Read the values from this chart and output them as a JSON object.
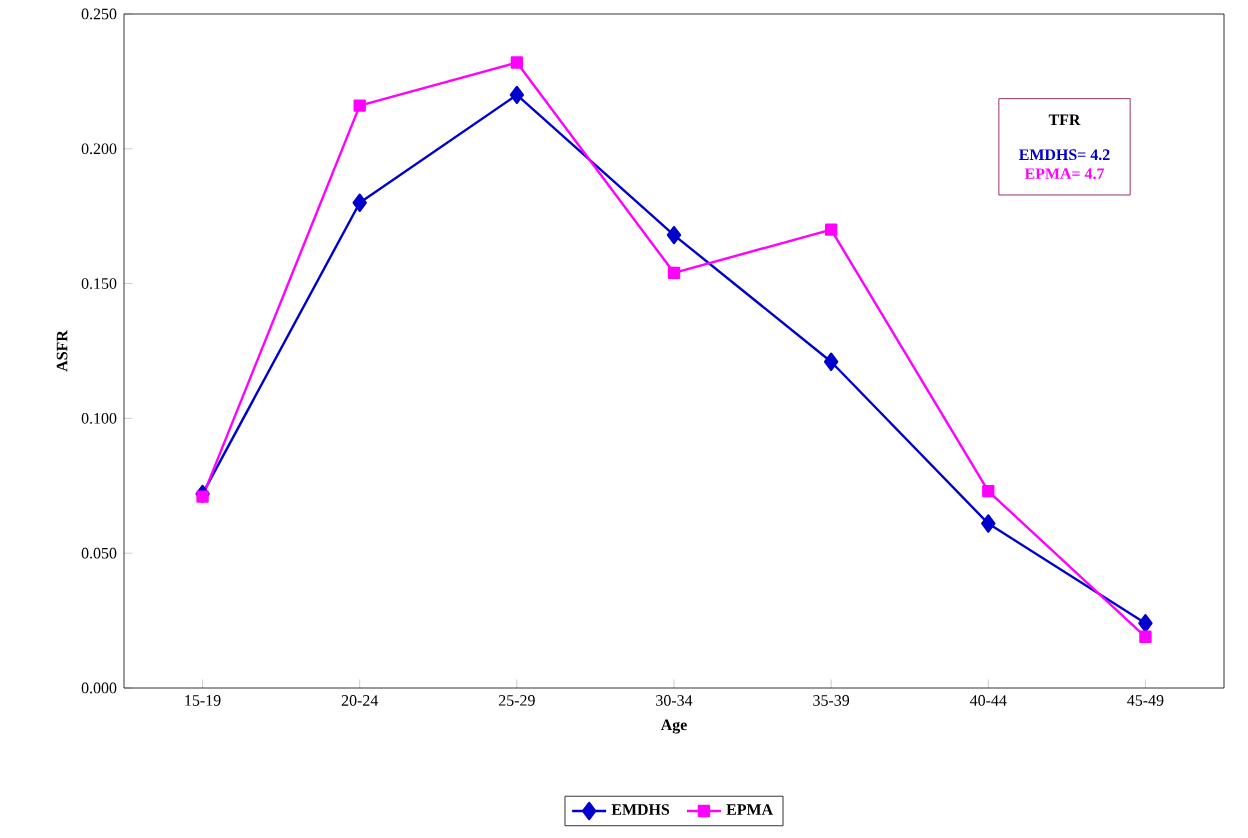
{
  "chart_data": {
    "type": "line",
    "xlabel": "Age",
    "ylabel": "ASFR",
    "categories": [
      "15-19",
      "20-24",
      "25-29",
      "30-34",
      "35-39",
      "40-44",
      "45-49"
    ],
    "series": [
      {
        "name": "EMDHS",
        "color": "#0000cc",
        "marker": "diamond",
        "values": [
          0.072,
          0.18,
          0.22,
          0.168,
          0.121,
          0.061,
          0.024
        ]
      },
      {
        "name": "EPMA",
        "color": "#ff00ff",
        "marker": "square",
        "values": [
          0.071,
          0.216,
          0.232,
          0.154,
          0.17,
          0.073,
          0.019
        ]
      }
    ],
    "ylim": [
      0,
      0.25
    ],
    "yticks": [
      {
        "value": 0,
        "label": "0.000"
      },
      {
        "value": 0.05,
        "label": "0.050"
      },
      {
        "value": 0.1,
        "label": "0.100"
      },
      {
        "value": 0.15,
        "label": "0.150"
      },
      {
        "value": 0.2,
        "label": "0.200"
      },
      {
        "value": 0.25,
        "label": "0.250"
      }
    ],
    "annotations": [
      "TFR",
      "EMDHS= 4.2",
      "EPMA= 4.7"
    ],
    "legend": "bottom",
    "grid": false,
    "line_style": "solid"
  }
}
